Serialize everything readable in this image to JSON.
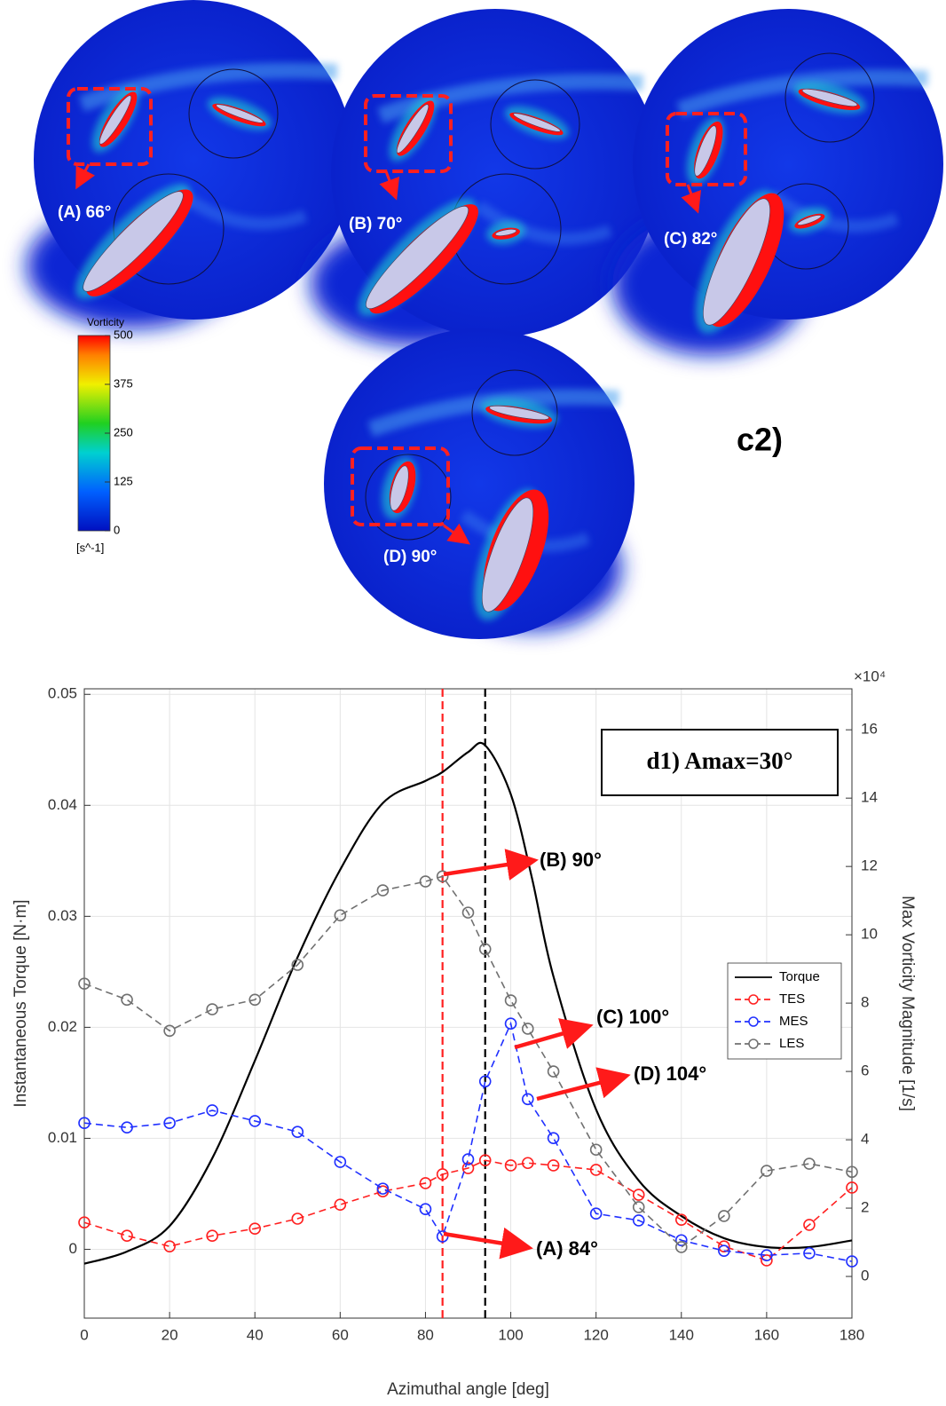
{
  "figure_c2": {
    "label": "c2)",
    "panels": [
      "(A) 66°",
      "(B) 70°",
      "(C) 82°",
      "(D) 90°"
    ],
    "colorbar": {
      "title": "Vorticity",
      "unit": "[s^-1]",
      "lim": [
        0,
        500
      ],
      "ticks": [
        0,
        125,
        250,
        375,
        500
      ]
    }
  },
  "chart_data": {
    "type": "line",
    "panel_label": "d1) Amax=30°",
    "xlabel": "Azimuthal angle [deg]",
    "ylabel": "Instantaneous Torque [N·m]",
    "y2label": "Max Vorticity Magnitude [1/s]",
    "y2multiplier": "×10⁴",
    "x": [
      0,
      10,
      20,
      30,
      40,
      50,
      60,
      70,
      80,
      84,
      90,
      94,
      100,
      104,
      110,
      120,
      130,
      140,
      150,
      160,
      170,
      180
    ],
    "series": [
      {
        "name": "Torque",
        "color": "#000000",
        "axis": "y",
        "style": "solid",
        "x": [
          0,
          10,
          20,
          30,
          40,
          50,
          60,
          70,
          80,
          84,
          90,
          94,
          100,
          105,
          110,
          120,
          130,
          140,
          150,
          160,
          170,
          180
        ],
        "values": [
          -0.0013,
          -0.0002,
          0.0021,
          0.0082,
          0.017,
          0.0263,
          0.0342,
          0.0402,
          0.0422,
          0.043,
          0.0448,
          0.0454,
          0.041,
          0.0334,
          0.0246,
          0.0126,
          0.0062,
          0.003,
          0.001,
          0.0002,
          0.0002,
          0.0008
        ]
      },
      {
        "name": "TES",
        "color": "#ff2020",
        "axis": "y2",
        "style": "dashed",
        "values": [
          1.58,
          1.19,
          0.88,
          1.19,
          1.4,
          1.69,
          2.1,
          2.49,
          2.73,
          2.99,
          3.17,
          3.4,
          3.25,
          3.32,
          3.25,
          3.12,
          2.39,
          1.66,
          0.88,
          0.47,
          1.51,
          2.6
        ]
      },
      {
        "name": "MES",
        "color": "#2030ff",
        "axis": "y2",
        "style": "dashed",
        "values": [
          4.49,
          4.36,
          4.49,
          4.86,
          4.55,
          4.23,
          3.35,
          2.57,
          1.97,
          1.17,
          3.43,
          5.71,
          7.4,
          5.19,
          4.05,
          1.84,
          1.64,
          1.06,
          0.75,
          0.62,
          0.68,
          0.44
        ]
      },
      {
        "name": "LES",
        "color": "#707070",
        "axis": "y2",
        "style": "dashed",
        "values": [
          8.57,
          8.1,
          7.19,
          7.82,
          8.1,
          9.12,
          10.57,
          11.3,
          11.56,
          11.71,
          10.65,
          9.58,
          8.08,
          7.25,
          6.0,
          3.71,
          2.03,
          0.86,
          1.77,
          3.09,
          3.3,
          3.06
        ]
      }
    ],
    "vlines": [
      {
        "x": 84,
        "color": "#ff2020"
      },
      {
        "x": 94,
        "color": "#000000"
      }
    ],
    "annotations": [
      "(B) 90°",
      "(C) 100°",
      "(D) 104°",
      "(A) 84°"
    ],
    "xlim": [
      0,
      180
    ],
    "xticks": [
      0,
      20,
      40,
      60,
      80,
      100,
      120,
      140,
      160,
      180
    ],
    "ylim": [
      -0.0062,
      0.0505
    ],
    "yticks": [
      0,
      0.01,
      0.02,
      0.03,
      0.04,
      0.05
    ],
    "y2lim": [
      -1.22,
      17.2
    ],
    "y2ticks": [
      0,
      2,
      4,
      6,
      8,
      10,
      12,
      14,
      16
    ],
    "grid": true,
    "legend": "right"
  }
}
